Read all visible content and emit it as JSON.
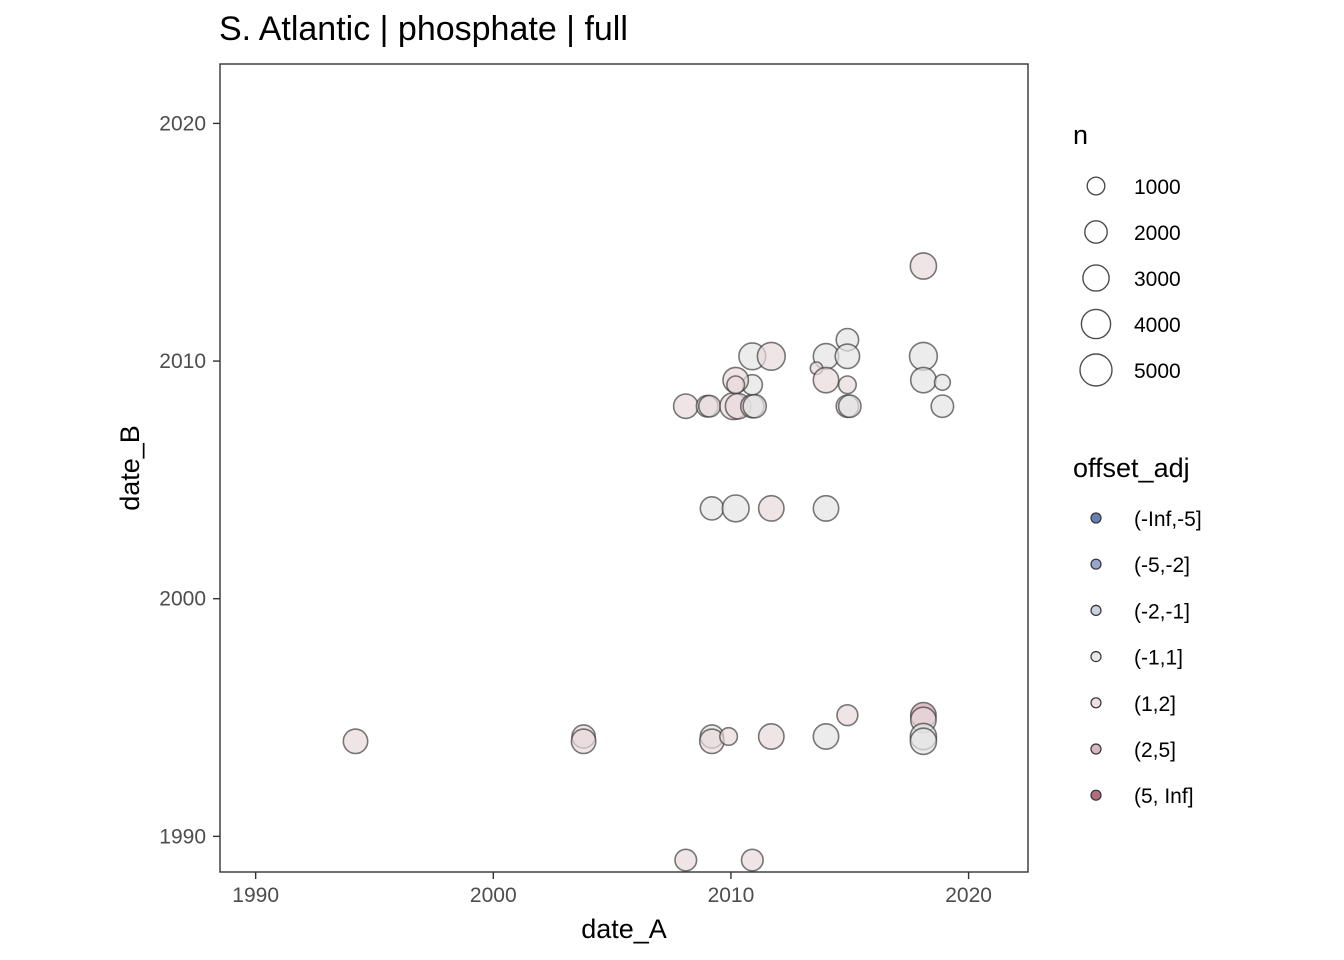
{
  "chart_data": {
    "type": "scatter",
    "title": "S. Atlantic | phosphate | full",
    "xlabel": "date_A",
    "ylabel": "date_B",
    "xlim": [
      1988.5,
      2022.5
    ],
    "ylim": [
      1988.5,
      2022.5
    ],
    "x_ticks": [
      1990,
      2000,
      2010,
      2020
    ],
    "y_ticks": [
      1990,
      2000,
      2010,
      2020
    ],
    "x_tick_labels": [
      "1990",
      "2000",
      "2010",
      "2020"
    ],
    "y_tick_labels": [
      "1990",
      "2000",
      "2010",
      "2020"
    ],
    "grid": false,
    "legend_position": "right",
    "size_legend": {
      "title": "n",
      "breaks": [
        1000,
        2000,
        3000,
        4000,
        5000
      ],
      "labels": [
        "1000",
        "2000",
        "3000",
        "4000",
        "5000"
      ]
    },
    "color_legend": {
      "title": "offset_adj",
      "categories": [
        "(-Inf,-5]",
        "(-5,-2]",
        "(-2,-1]",
        "(-1,1]",
        "(1,2]",
        "(2,5]",
        "(5, Inf]"
      ],
      "colors": [
        "#4060a0",
        "#8090c0",
        "#c0c4dc",
        "#e4e4e4",
        "#e8d8dc",
        "#cfa4b0",
        "#a04860"
      ]
    },
    "points": [
      {
        "x": 1994.2,
        "y": 1994.0,
        "n": 2500,
        "offset": "(1,2]"
      },
      {
        "x": 2003.8,
        "y": 1994.2,
        "n": 2200,
        "offset": "(1,2]"
      },
      {
        "x": 2003.8,
        "y": 1994.0,
        "n": 2500,
        "offset": "(1,2]"
      },
      {
        "x": 2008.1,
        "y": 1989.0,
        "n": 1800,
        "offset": "(1,2]"
      },
      {
        "x": 2010.9,
        "y": 1989.0,
        "n": 1800,
        "offset": "(1,2]"
      },
      {
        "x": 2009.2,
        "y": 1994.2,
        "n": 2200,
        "offset": "(-1,1]"
      },
      {
        "x": 2009.2,
        "y": 1994.0,
        "n": 2500,
        "offset": "(1,2]"
      },
      {
        "x": 2009.9,
        "y": 1994.2,
        "n": 1000,
        "offset": "(1,2]"
      },
      {
        "x": 2011.7,
        "y": 1994.2,
        "n": 2800,
        "offset": "(1,2]"
      },
      {
        "x": 2014.0,
        "y": 1994.2,
        "n": 2800,
        "offset": "(-1,1]"
      },
      {
        "x": 2014.9,
        "y": 1995.1,
        "n": 1600,
        "offset": "(1,2]"
      },
      {
        "x": 2018.1,
        "y": 1995.1,
        "n": 2800,
        "offset": "(2,5]"
      },
      {
        "x": 2018.1,
        "y": 1994.9,
        "n": 2800,
        "offset": "(1,2]"
      },
      {
        "x": 2018.1,
        "y": 1994.2,
        "n": 3000,
        "offset": "(-1,1]"
      },
      {
        "x": 2018.1,
        "y": 1994.0,
        "n": 3000,
        "offset": "(-1,1]"
      },
      {
        "x": 2009.2,
        "y": 2003.8,
        "n": 2200,
        "offset": "(-1,1]"
      },
      {
        "x": 2010.2,
        "y": 2003.8,
        "n": 3200,
        "offset": "(-1,1]"
      },
      {
        "x": 2011.7,
        "y": 2003.8,
        "n": 2800,
        "offset": "(1,2]"
      },
      {
        "x": 2014.0,
        "y": 2003.8,
        "n": 2800,
        "offset": "(-1,1]"
      },
      {
        "x": 2008.1,
        "y": 2008.1,
        "n": 2500,
        "offset": "(1,2]"
      },
      {
        "x": 2009.0,
        "y": 2008.1,
        "n": 1800,
        "offset": "(-1,1]"
      },
      {
        "x": 2009.1,
        "y": 2008.1,
        "n": 1800,
        "offset": "(1,2]"
      },
      {
        "x": 2010.1,
        "y": 2008.1,
        "n": 3200,
        "offset": "(1,2]"
      },
      {
        "x": 2010.3,
        "y": 2008.1,
        "n": 2800,
        "offset": "(1,2]"
      },
      {
        "x": 2010.9,
        "y": 2008.1,
        "n": 2200,
        "offset": "(1,2]"
      },
      {
        "x": 2011.0,
        "y": 2008.1,
        "n": 2200,
        "offset": "(-1,1]"
      },
      {
        "x": 2010.9,
        "y": 2009.0,
        "n": 1500,
        "offset": "(-1,1]"
      },
      {
        "x": 2010.2,
        "y": 2009.2,
        "n": 2800,
        "offset": "(1,2]"
      },
      {
        "x": 2010.2,
        "y": 2009.0,
        "n": 1000,
        "offset": "(1,2]"
      },
      {
        "x": 2010.9,
        "y": 2010.2,
        "n": 3200,
        "offset": "(-1,1]"
      },
      {
        "x": 2011.7,
        "y": 2010.2,
        "n": 3500,
        "offset": "(1,2]"
      },
      {
        "x": 2014.0,
        "y": 2010.2,
        "n": 2800,
        "offset": "(-1,1]"
      },
      {
        "x": 2013.6,
        "y": 2009.7,
        "n": 300,
        "offset": "(1,2]"
      },
      {
        "x": 2014.0,
        "y": 2009.2,
        "n": 2800,
        "offset": "(1,2]"
      },
      {
        "x": 2014.9,
        "y": 2010.9,
        "n": 2000,
        "offset": "(-1,1]"
      },
      {
        "x": 2014.9,
        "y": 2010.2,
        "n": 2500,
        "offset": "(-1,1]"
      },
      {
        "x": 2014.9,
        "y": 2009.0,
        "n": 1000,
        "offset": "(1,2]"
      },
      {
        "x": 2014.9,
        "y": 2008.1,
        "n": 2000,
        "offset": "(1,2]"
      },
      {
        "x": 2015.0,
        "y": 2008.1,
        "n": 2000,
        "offset": "(-1,1]"
      },
      {
        "x": 2018.1,
        "y": 2010.2,
        "n": 3500,
        "offset": "(-1,1]"
      },
      {
        "x": 2018.1,
        "y": 2009.2,
        "n": 2800,
        "offset": "(-1,1]"
      },
      {
        "x": 2018.9,
        "y": 2009.1,
        "n": 700,
        "offset": "(-1,1]"
      },
      {
        "x": 2018.9,
        "y": 2008.1,
        "n": 2000,
        "offset": "(-1,1]"
      },
      {
        "x": 2018.1,
        "y": 2014.0,
        "n": 3000,
        "offset": "(1,2]"
      }
    ]
  }
}
